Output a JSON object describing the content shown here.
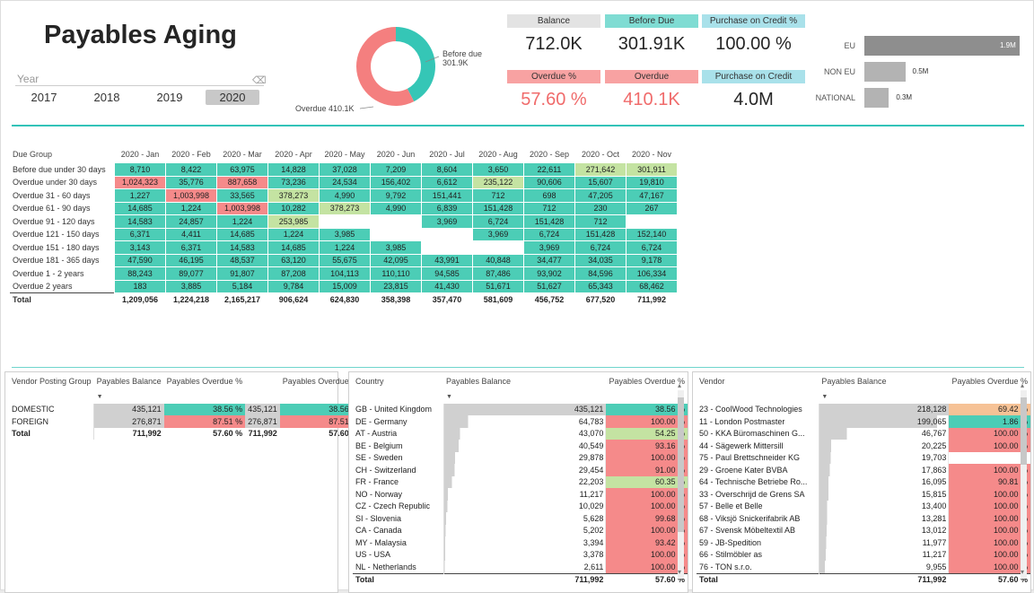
{
  "title": "Payables Aging",
  "slicer": {
    "label": "Year",
    "eraser": "⌫",
    "years": [
      "2017",
      "2018",
      "2019",
      "2020"
    ],
    "selected": "2020"
  },
  "donut": {
    "segments": [
      {
        "label": "Before due",
        "value": "301.9K",
        "amount": 301.91,
        "color": "#35c6b6"
      },
      {
        "label": "Overdue",
        "value": "410.1K",
        "amount": 410.1,
        "color": "#f47f7f"
      }
    ],
    "label_before_line1": "Before due",
    "label_before_line2": "301.9K",
    "label_overdue": "Overdue 410.1K"
  },
  "kpis": [
    {
      "label": "Balance",
      "value": "712.0K",
      "label_color": "#e3e3e3",
      "value_color": "#252525"
    },
    {
      "label": "Before Due",
      "value": "301.91K",
      "label_color": "#7fdcd3",
      "value_color": "#252525"
    },
    {
      "label": "Purchase on Credit %",
      "value": "100.00 %",
      "label_color": "#a9e1ea",
      "value_color": "#252525"
    },
    {
      "label": "Overdue %",
      "value": "57.60 %",
      "label_color": "#f8a2a2",
      "value_color": "#f06b6b"
    },
    {
      "label": "Overdue",
      "value": "410.1K",
      "label_color": "#f8a2a2",
      "value_color": "#f06b6b"
    },
    {
      "label": "Purchase on Credit",
      "value": "4.0M",
      "label_color": "#a9e1ea",
      "value_color": "#252525"
    }
  ],
  "region_bars": [
    {
      "label": "EU",
      "value_label": "1.9M",
      "value": 1.9
    },
    {
      "label": "NON EU",
      "value_label": "0.5M",
      "value": 0.5
    },
    {
      "label": "NATIONAL",
      "value_label": "0.3M",
      "value": 0.3
    }
  ],
  "matrix": {
    "row_header": "Due Group",
    "columns": [
      "2020 - Jan",
      "2020 - Feb",
      "2020 - Mar",
      "2020 - Apr",
      "2020 - May",
      "2020 - Jun",
      "2020 - Jul",
      "2020 - Aug",
      "2020 - Sep",
      "2020 - Oct",
      "2020 - Nov"
    ],
    "rows": [
      {
        "label": "Before due under 30 days",
        "cells": [
          "8,710",
          "8,422",
          "63,975",
          "14,828",
          "37,028",
          "7,209",
          "8,604",
          "3,650",
          "22,611",
          "271,642",
          "301,911"
        ],
        "colors": [
          "t",
          "t",
          "t",
          "t",
          "t",
          "t",
          "t",
          "t",
          "t",
          "y",
          "y"
        ]
      },
      {
        "label": "Overdue under 30 days",
        "cells": [
          "1,024,323",
          "35,776",
          "887,658",
          "73,236",
          "24,534",
          "156,402",
          "6,612",
          "235,122",
          "90,606",
          "15,607",
          "19,810"
        ],
        "colors": [
          "r",
          "t",
          "r",
          "t",
          "t",
          "t",
          "t",
          "y",
          "t",
          "t",
          "t"
        ]
      },
      {
        "label": "Overdue 31 - 60 days",
        "cells": [
          "1,227",
          "1,003,998",
          "33,565",
          "378,273",
          "4,990",
          "9,792",
          "151,441",
          "712",
          "698",
          "47,205",
          "47,167"
        ],
        "colors": [
          "t",
          "r",
          "t",
          "y",
          "t",
          "t",
          "t",
          "t",
          "t",
          "t",
          "t"
        ]
      },
      {
        "label": "Overdue 61 - 90 days",
        "cells": [
          "14,685",
          "1,224",
          "1,003,998",
          "10,282",
          "378,273",
          "4,990",
          "6,839",
          "151,428",
          "712",
          "230",
          "267"
        ],
        "colors": [
          "t",
          "t",
          "r",
          "t",
          "y",
          "t",
          "t",
          "t",
          "t",
          "t",
          "t"
        ]
      },
      {
        "label": "Overdue 91 - 120 days",
        "cells": [
          "14,583",
          "24,857",
          "1,224",
          "253,985",
          "",
          "",
          "3,969",
          "6,724",
          "151,428",
          "712",
          ""
        ],
        "colors": [
          "t",
          "t",
          "t",
          "y",
          "",
          "",
          "t",
          "t",
          "t",
          "t",
          ""
        ]
      },
      {
        "label": "Overdue 121 - 150 days",
        "cells": [
          "6,371",
          "4,411",
          "14,685",
          "1,224",
          "3,985",
          "",
          "",
          "3,969",
          "6,724",
          "151,428",
          "152,140"
        ],
        "colors": [
          "t",
          "t",
          "t",
          "t",
          "t",
          "",
          "",
          "t",
          "t",
          "t",
          "t"
        ]
      },
      {
        "label": "Overdue 151 - 180 days",
        "cells": [
          "3,143",
          "6,371",
          "14,583",
          "14,685",
          "1,224",
          "3,985",
          "",
          "",
          "3,969",
          "6,724",
          "6,724"
        ],
        "colors": [
          "t",
          "t",
          "t",
          "t",
          "t",
          "t",
          "",
          "",
          "t",
          "t",
          "t"
        ]
      },
      {
        "label": "Overdue 181 - 365 days",
        "cells": [
          "47,590",
          "46,195",
          "48,537",
          "63,120",
          "55,675",
          "42,095",
          "43,991",
          "40,848",
          "34,477",
          "34,035",
          "9,178"
        ],
        "colors": [
          "t",
          "t",
          "t",
          "t",
          "t",
          "t",
          "t",
          "t",
          "t",
          "t",
          "t"
        ]
      },
      {
        "label": "Overdue 1 - 2 years",
        "cells": [
          "88,243",
          "89,077",
          "91,807",
          "87,208",
          "104,113",
          "110,110",
          "94,585",
          "87,486",
          "93,902",
          "84,596",
          "106,334"
        ],
        "colors": [
          "t",
          "t",
          "t",
          "t",
          "t",
          "t",
          "t",
          "t",
          "t",
          "t",
          "t"
        ]
      },
      {
        "label": "Overdue 2 years",
        "cells": [
          "183",
          "3,885",
          "5,184",
          "9,784",
          "15,009",
          "23,815",
          "41,430",
          "51,671",
          "51,627",
          "65,343",
          "68,462"
        ],
        "colors": [
          "t",
          "t",
          "t",
          "t",
          "t",
          "t",
          "t",
          "t",
          "t",
          "t",
          "t"
        ]
      }
    ],
    "total_label": "Total",
    "totals": [
      "1,209,056",
      "1,224,218",
      "2,165,217",
      "906,624",
      "624,830",
      "358,398",
      "357,470",
      "581,609",
      "456,752",
      "677,520",
      "711,992"
    ]
  },
  "vendor_group": {
    "headers": [
      "Vendor Posting Group",
      "Payables Balance",
      "Payables Overdue %",
      "",
      "Payables Overdue %"
    ],
    "rows": [
      {
        "label": "DOMESTIC",
        "balance": "435,121",
        "pct": "38.56 %",
        "balance2": "435,121",
        "pct2": "38.56 %",
        "pct_color": "t"
      },
      {
        "label": "FOREIGN",
        "balance": "276,871",
        "pct": "87.51 %",
        "balance2": "276,871",
        "pct2": "87.51 %",
        "pct_color": "r"
      }
    ],
    "total": {
      "label": "Total",
      "balance": "711,992",
      "pct": "57.60 %",
      "balance2": "711,992",
      "pct2": "57.60 %"
    }
  },
  "country": {
    "headers": [
      "Country",
      "Payables Balance",
      "Payables Overdue %"
    ],
    "rows": [
      {
        "label": "GB - United Kingdom",
        "balance": "435,121",
        "amount": 435121,
        "pct": "38.56 %",
        "pct_color": "t"
      },
      {
        "label": "DE - Germany",
        "balance": "64,783",
        "amount": 64783,
        "pct": "100.00 %",
        "pct_color": "r"
      },
      {
        "label": "AT - Austria",
        "balance": "43,070",
        "amount": 43070,
        "pct": "54.25 %",
        "pct_color": "y"
      },
      {
        "label": "BE - Belgium",
        "balance": "40,549",
        "amount": 40549,
        "pct": "93.16 %",
        "pct_color": "r"
      },
      {
        "label": "SE - Sweden",
        "balance": "29,878",
        "amount": 29878,
        "pct": "100.00 %",
        "pct_color": "r"
      },
      {
        "label": "CH - Switzerland",
        "balance": "29,454",
        "amount": 29454,
        "pct": "91.00 %",
        "pct_color": "r"
      },
      {
        "label": "FR - France",
        "balance": "22,203",
        "amount": 22203,
        "pct": "60.35 %",
        "pct_color": "y"
      },
      {
        "label": "NO - Norway",
        "balance": "11,217",
        "amount": 11217,
        "pct": "100.00 %",
        "pct_color": "r"
      },
      {
        "label": "CZ - Czech Republic",
        "balance": "10,029",
        "amount": 10029,
        "pct": "100.00 %",
        "pct_color": "r"
      },
      {
        "label": "SI - Slovenia",
        "balance": "5,628",
        "amount": 5628,
        "pct": "99.68 %",
        "pct_color": "r"
      },
      {
        "label": "CA - Canada",
        "balance": "5,202",
        "amount": 5202,
        "pct": "100.00 %",
        "pct_color": "r"
      },
      {
        "label": "MY - Malaysia",
        "balance": "3,394",
        "amount": 3394,
        "pct": "93.42 %",
        "pct_color": "r"
      },
      {
        "label": "US - USA",
        "balance": "3,378",
        "amount": 3378,
        "pct": "100.00 %",
        "pct_color": "r"
      },
      {
        "label": "NL - Netherlands",
        "balance": "2,611",
        "amount": 2611,
        "pct": "100.00 %",
        "pct_color": "r"
      }
    ],
    "total": {
      "label": "Total",
      "balance": "711,992",
      "pct": "57.60 %"
    }
  },
  "vendor": {
    "headers": [
      "Vendor",
      "Payables Balance",
      "Payables Overdue %"
    ],
    "rows": [
      {
        "label": "23 - CoolWood Technologies",
        "balance": "218,128",
        "amount": 218128,
        "pct": "69.42 %",
        "pct_color": "o"
      },
      {
        "label": "11 - London Postmaster",
        "balance": "199,065",
        "amount": 199065,
        "pct": "1.86 %",
        "pct_color": "t"
      },
      {
        "label": "50 - KKA Büromaschinen G...",
        "balance": "46,767",
        "amount": 46767,
        "pct": "100.00 %",
        "pct_color": "r"
      },
      {
        "label": "44 - Sägewerk Mittersill",
        "balance": "20,225",
        "amount": 20225,
        "pct": "100.00 %",
        "pct_color": "r"
      },
      {
        "label": "75 - Paul Brettschneider KG",
        "balance": "19,703",
        "amount": 19703,
        "pct": "",
        "pct_color": ""
      },
      {
        "label": "29 - Groene Kater BVBA",
        "balance": "17,863",
        "amount": 17863,
        "pct": "100.00 %",
        "pct_color": "r"
      },
      {
        "label": "64 - Technische Betriebe Ro...",
        "balance": "16,095",
        "amount": 16095,
        "pct": "90.81 %",
        "pct_color": "r"
      },
      {
        "label": "33 - Overschrijd de Grens SA",
        "balance": "15,815",
        "amount": 15815,
        "pct": "100.00 %",
        "pct_color": "r"
      },
      {
        "label": "57 - Belle et Belle",
        "balance": "13,400",
        "amount": 13400,
        "pct": "100.00 %",
        "pct_color": "r"
      },
      {
        "label": "68 - Viksjö Snickerifabrik AB",
        "balance": "13,281",
        "amount": 13281,
        "pct": "100.00 %",
        "pct_color": "r"
      },
      {
        "label": "67 - Svensk Möbeltextil AB",
        "balance": "13,012",
        "amount": 13012,
        "pct": "100.00 %",
        "pct_color": "r"
      },
      {
        "label": "59 - JB-Spedition",
        "balance": "11,977",
        "amount": 11977,
        "pct": "100.00 %",
        "pct_color": "r"
      },
      {
        "label": "66 - Stilmöbler as",
        "balance": "11,217",
        "amount": 11217,
        "pct": "100.00 %",
        "pct_color": "r"
      },
      {
        "label": "76 - TON s.r.o.",
        "balance": "9,955",
        "amount": 9955,
        "pct": "100.00 %",
        "pct_color": "r"
      }
    ],
    "total": {
      "label": "Total",
      "balance": "711,992",
      "pct": "57.60 %"
    }
  }
}
